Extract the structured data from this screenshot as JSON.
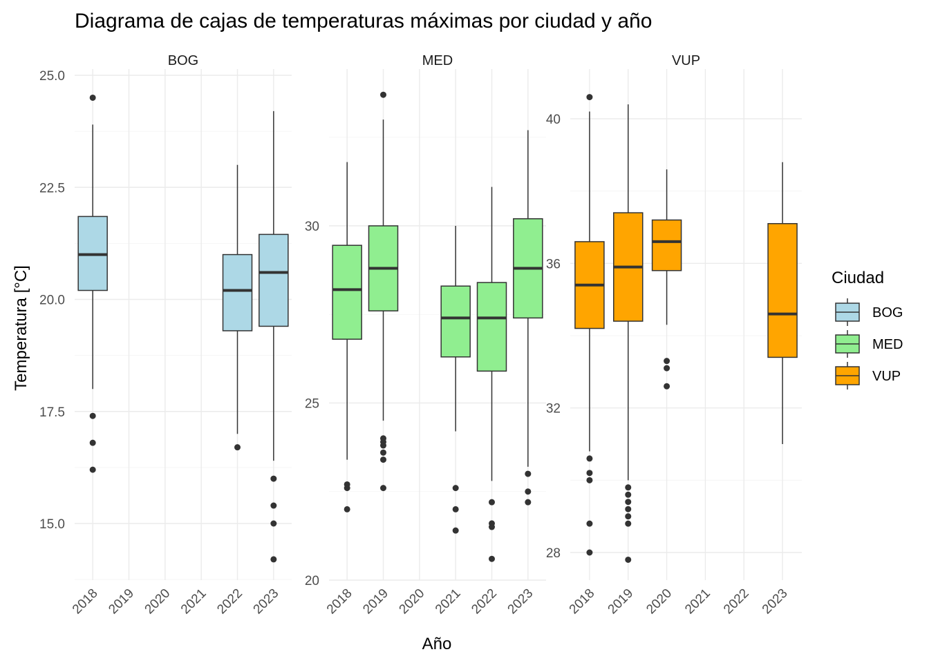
{
  "chart_data": {
    "type": "boxplot",
    "title": "Diagrama de cajas de temperaturas máximas por ciudad y año",
    "xlabel": "Año",
    "ylabel": "Temperatura [°C]",
    "legend": {
      "title": "Ciudad",
      "placement": "right",
      "entries": [
        {
          "name": "BOG",
          "color": "#add8e6"
        },
        {
          "name": "MED",
          "color": "#90ee90"
        },
        {
          "name": "VUP",
          "color": "#ffa500"
        }
      ]
    },
    "categories": [
      "2018",
      "2019",
      "2020",
      "2021",
      "2022",
      "2023"
    ],
    "grid": true,
    "facets": [
      {
        "name": "BOG",
        "color": "#add8e6",
        "ylim": [
          13.8,
          25.0
        ],
        "yticks": [
          15.0,
          17.5,
          20.0,
          22.5,
          25.0
        ],
        "ytick_labels": [
          "15.0",
          "17.5",
          "20.0",
          "22.5",
          "25.0"
        ],
        "boxes": [
          {
            "x": "2018",
            "lower": 18.0,
            "q1": 20.2,
            "median": 21.0,
            "q3": 21.85,
            "upper": 23.9,
            "outliers": [
              24.5,
              17.4,
              16.8,
              16.2
            ]
          },
          {
            "x": "2022",
            "lower": 17.0,
            "q1": 19.3,
            "median": 20.2,
            "q3": 21.0,
            "upper": 23.0,
            "outliers": [
              16.7
            ]
          },
          {
            "x": "2023",
            "lower": 16.4,
            "q1": 19.4,
            "median": 20.6,
            "q3": 21.45,
            "upper": 24.2,
            "outliers": [
              16.0,
              15.4,
              15.0,
              14.2
            ]
          }
        ]
      },
      {
        "name": "MED",
        "color": "#90ee90",
        "ylim": [
          20.0,
          34.2
        ],
        "yticks": [
          20,
          25,
          30
        ],
        "ytick_labels": [
          "20",
          "25",
          "30"
        ],
        "boxes": [
          {
            "x": "2018",
            "lower": 23.4,
            "q1": 26.8,
            "median": 28.2,
            "q3": 29.45,
            "upper": 31.8,
            "outliers": [
              22.7,
              22.6,
              22.0
            ]
          },
          {
            "x": "2019",
            "lower": 24.5,
            "q1": 27.6,
            "median": 28.8,
            "q3": 30.0,
            "upper": 33.0,
            "outliers": [
              33.7,
              24.0,
              23.9,
              23.8,
              23.6,
              23.4,
              22.6
            ]
          },
          {
            "x": "2021",
            "lower": 24.2,
            "q1": 26.3,
            "median": 27.4,
            "q3": 28.3,
            "upper": 30.0,
            "outliers": [
              22.6,
              22.0,
              21.4
            ]
          },
          {
            "x": "2022",
            "lower": 22.8,
            "q1": 25.9,
            "median": 27.4,
            "q3": 28.4,
            "upper": 31.1,
            "outliers": [
              22.2,
              21.6,
              21.5,
              20.6
            ]
          },
          {
            "x": "2023",
            "lower": 23.2,
            "q1": 27.4,
            "median": 28.8,
            "q3": 30.2,
            "upper": 32.7,
            "outliers": [
              23.0,
              22.5,
              22.2
            ]
          }
        ]
      },
      {
        "name": "VUP",
        "color": "#ffa500",
        "ylim": [
          27.3,
          40.6
        ],
        "yticks": [
          28,
          32,
          36,
          40
        ],
        "ytick_labels": [
          "28",
          "32",
          "36",
          "40"
        ],
        "boxes": [
          {
            "x": "2018",
            "lower": 30.8,
            "q1": 34.2,
            "median": 35.4,
            "q3": 36.6,
            "upper": 40.2,
            "outliers": [
              40.6,
              30.6,
              30.2,
              30.0,
              28.8,
              28.0
            ]
          },
          {
            "x": "2019",
            "lower": 30.0,
            "q1": 34.4,
            "median": 35.9,
            "q3": 37.4,
            "upper": 40.4,
            "outliers": [
              29.8,
              29.6,
              29.4,
              29.2,
              29.0,
              28.8,
              27.8
            ]
          },
          {
            "x": "2020",
            "lower": 34.3,
            "q1": 35.8,
            "median": 36.6,
            "q3": 37.2,
            "upper": 38.6,
            "outliers": [
              33.3,
              33.1,
              32.6
            ]
          },
          {
            "x": "2023",
            "lower": 31.0,
            "q1": 33.4,
            "median": 34.6,
            "q3": 37.1,
            "upper": 38.8,
            "outliers": []
          }
        ]
      }
    ]
  }
}
